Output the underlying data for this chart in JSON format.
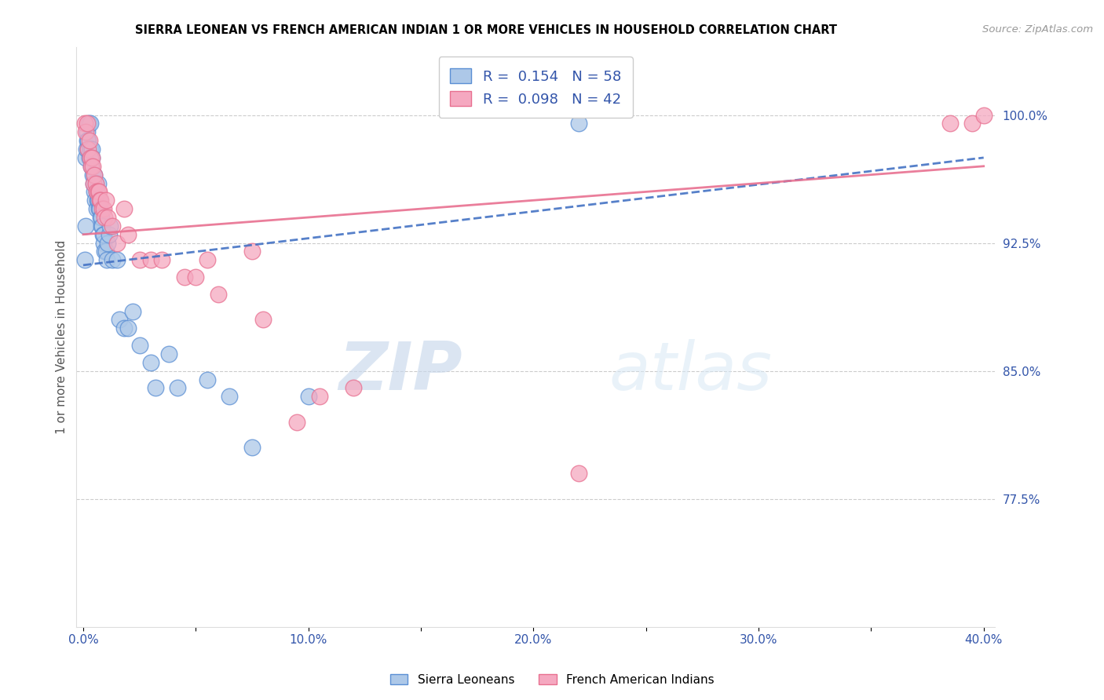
{
  "title": "SIERRA LEONEAN VS FRENCH AMERICAN INDIAN 1 OR MORE VEHICLES IN HOUSEHOLD CORRELATION CHART",
  "source": "Source: ZipAtlas.com",
  "ylabel": "1 or more Vehicles in Household",
  "xlim": [
    0.0,
    40.0
  ],
  "ylim": [
    70.0,
    104.0
  ],
  "yticks": [
    77.5,
    85.0,
    92.5,
    100.0
  ],
  "xticks": [
    0.0,
    10.0,
    20.0,
    30.0,
    40.0
  ],
  "sierra_R": 0.154,
  "sierra_N": 58,
  "french_R": 0.098,
  "french_N": 42,
  "sierra_color": "#adc8e8",
  "french_color": "#f5a8c0",
  "sierra_edge_color": "#5b8fd4",
  "french_edge_color": "#e87090",
  "sierra_line_color": "#4472c4",
  "french_line_color": "#e87090",
  "watermark_zip": "ZIP",
  "watermark_atlas": "atlas",
  "sierra_line_x": [
    0.0,
    40.0
  ],
  "sierra_line_y": [
    91.2,
    97.5
  ],
  "french_line_x": [
    0.0,
    40.0
  ],
  "french_line_y": [
    93.0,
    97.0
  ],
  "sierra_x": [
    0.08,
    0.1,
    0.12,
    0.15,
    0.17,
    0.18,
    0.2,
    0.22,
    0.25,
    0.27,
    0.3,
    0.32,
    0.35,
    0.38,
    0.4,
    0.42,
    0.45,
    0.48,
    0.5,
    0.52,
    0.55,
    0.58,
    0.6,
    0.62,
    0.65,
    0.68,
    0.7,
    0.73,
    0.75,
    0.78,
    0.8,
    0.82,
    0.85,
    0.88,
    0.9,
    0.92,
    0.95,
    1.0,
    1.05,
    1.1,
    1.15,
    1.2,
    1.3,
    1.5,
    1.6,
    1.8,
    2.0,
    2.2,
    2.5,
    3.0,
    3.2,
    3.8,
    4.2,
    5.5,
    6.5,
    7.5,
    10.0,
    22.0
  ],
  "sierra_y": [
    91.5,
    93.5,
    97.5,
    98.0,
    99.0,
    98.5,
    98.0,
    98.5,
    99.5,
    97.5,
    99.5,
    98.0,
    97.0,
    98.0,
    97.5,
    96.5,
    96.0,
    96.5,
    95.5,
    95.0,
    96.0,
    95.5,
    94.5,
    95.0,
    96.0,
    95.0,
    94.5,
    95.0,
    94.5,
    94.0,
    93.5,
    94.0,
    93.5,
    93.0,
    92.5,
    93.0,
    92.0,
    92.0,
    91.5,
    92.5,
    93.0,
    93.5,
    91.5,
    91.5,
    88.0,
    87.5,
    87.5,
    88.5,
    86.5,
    85.5,
    84.0,
    86.0,
    84.0,
    84.5,
    83.5,
    80.5,
    83.5,
    99.5
  ],
  "french_x": [
    0.08,
    0.12,
    0.18,
    0.22,
    0.28,
    0.32,
    0.35,
    0.38,
    0.42,
    0.45,
    0.5,
    0.55,
    0.58,
    0.65,
    0.7,
    0.75,
    0.78,
    0.85,
    0.9,
    0.95,
    1.0,
    1.1,
    1.3,
    1.5,
    1.8,
    2.0,
    2.5,
    3.0,
    3.5,
    4.5,
    5.0,
    5.5,
    6.0,
    7.5,
    8.0,
    9.5,
    10.5,
    12.0,
    22.0,
    38.5,
    39.5,
    40.0
  ],
  "french_y": [
    99.5,
    99.0,
    99.5,
    98.0,
    98.5,
    97.5,
    97.0,
    97.5,
    97.0,
    96.0,
    96.5,
    96.0,
    95.5,
    95.5,
    95.5,
    95.0,
    95.0,
    94.5,
    94.5,
    94.0,
    95.0,
    94.0,
    93.5,
    92.5,
    94.5,
    93.0,
    91.5,
    91.5,
    91.5,
    90.5,
    90.5,
    91.5,
    89.5,
    92.0,
    88.0,
    82.0,
    83.5,
    84.0,
    79.0,
    99.5,
    99.5,
    100.0
  ]
}
